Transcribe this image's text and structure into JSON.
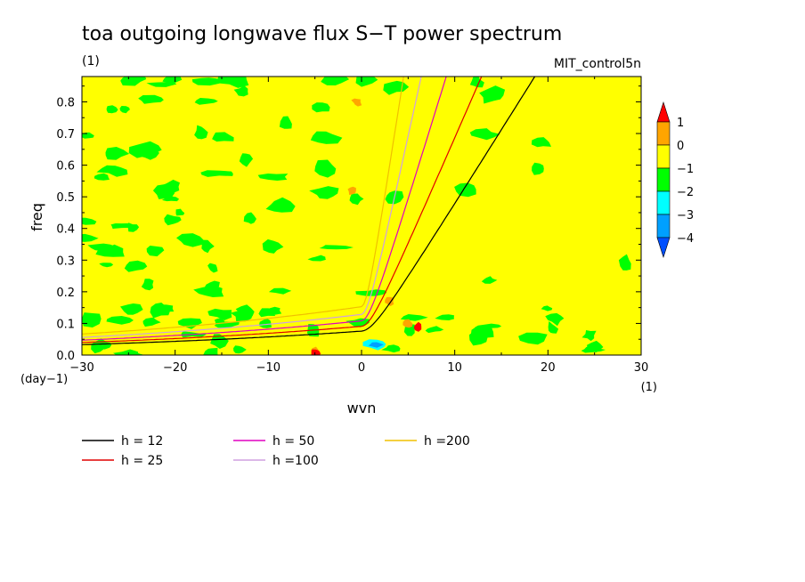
{
  "chart_data": {
    "type": "contour",
    "title": "toa outgoing longwave flux S−T power spectrum",
    "units_left": "(1)",
    "model_label": "MIT_control5n",
    "xlabel": "wvn",
    "ylabel": "freq",
    "x_units": "(1)",
    "y_units": "(day−1)",
    "xlim": [
      -30,
      30
    ],
    "ylim": [
      0,
      0.88
    ],
    "x_ticks": [
      -30,
      -20,
      -10,
      0,
      10,
      20,
      30
    ],
    "x_tick_labels": [
      "−30",
      "−20",
      "−10",
      "0",
      "10",
      "20",
      "30"
    ],
    "y_ticks": [
      0,
      0.1,
      0.2,
      0.3,
      0.4,
      0.5,
      0.6,
      0.7,
      0.8
    ],
    "y_tick_labels": [
      "0.0",
      "0.1",
      "0.2",
      "0.3",
      "0.4",
      "0.5",
      "0.6",
      "0.7",
      "0.8"
    ],
    "background_color": "#ffff00",
    "colorbar": {
      "labels": [
        "1",
        "0",
        "−1",
        "−2",
        "−3",
        "−4"
      ],
      "bins": [
        {
          "range": "above 1",
          "color": "#ff0000"
        },
        {
          "range": "0 to 1",
          "color": "#ffa500"
        },
        {
          "range": "-1 to 0",
          "color": "#ffff00"
        },
        {
          "range": "-2 to -1",
          "color": "#00ff00"
        },
        {
          "range": "-3 to -2",
          "color": "#00ffff"
        },
        {
          "range": "-4 to -3",
          "color": "#00a0ff"
        },
        {
          "range": "below -4",
          "color": "#0050ff"
        }
      ]
    },
    "series": [
      {
        "name": "h = 12",
        "h": 12,
        "color": "#000000"
      },
      {
        "name": "h = 25",
        "h": 25,
        "color": "#e00000"
      },
      {
        "name": "h = 50",
        "h": 50,
        "color": "#e000c0"
      },
      {
        "name": "h =100",
        "h": 100,
        "color": "#d0a0e0"
      },
      {
        "name": "h =200",
        "h": 200,
        "color": "#f0c000"
      }
    ]
  }
}
